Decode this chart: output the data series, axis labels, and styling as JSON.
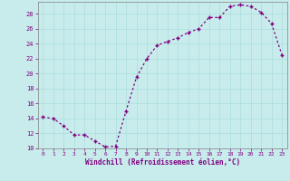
{
  "x": [
    0,
    1,
    2,
    3,
    4,
    5,
    6,
    7,
    8,
    9,
    10,
    11,
    12,
    13,
    14,
    15,
    16,
    17,
    18,
    19,
    20,
    21,
    22,
    23
  ],
  "y": [
    14.2,
    14.0,
    13.0,
    11.8,
    11.8,
    11.0,
    10.2,
    10.3,
    15.0,
    19.5,
    22.0,
    23.8,
    24.3,
    24.8,
    25.5,
    26.0,
    27.5,
    27.5,
    29.0,
    29.2,
    29.0,
    28.2,
    26.7,
    22.5
  ],
  "line_color": "#800080",
  "marker": "+",
  "bg_color": "#c8ecec",
  "grid_color": "#aadddd",
  "xlabel": "Windchill (Refroidissement éolien,°C)",
  "ylim": [
    10,
    29.6
  ],
  "xlim": [
    -0.5,
    23.5
  ],
  "yticks": [
    10,
    12,
    14,
    16,
    18,
    20,
    22,
    24,
    26,
    28
  ],
  "xticks": [
    0,
    1,
    2,
    3,
    4,
    5,
    6,
    7,
    8,
    9,
    10,
    11,
    12,
    13,
    14,
    15,
    16,
    17,
    18,
    19,
    20,
    21,
    22,
    23
  ],
  "font_color": "#800080",
  "axis_color": "#808080"
}
